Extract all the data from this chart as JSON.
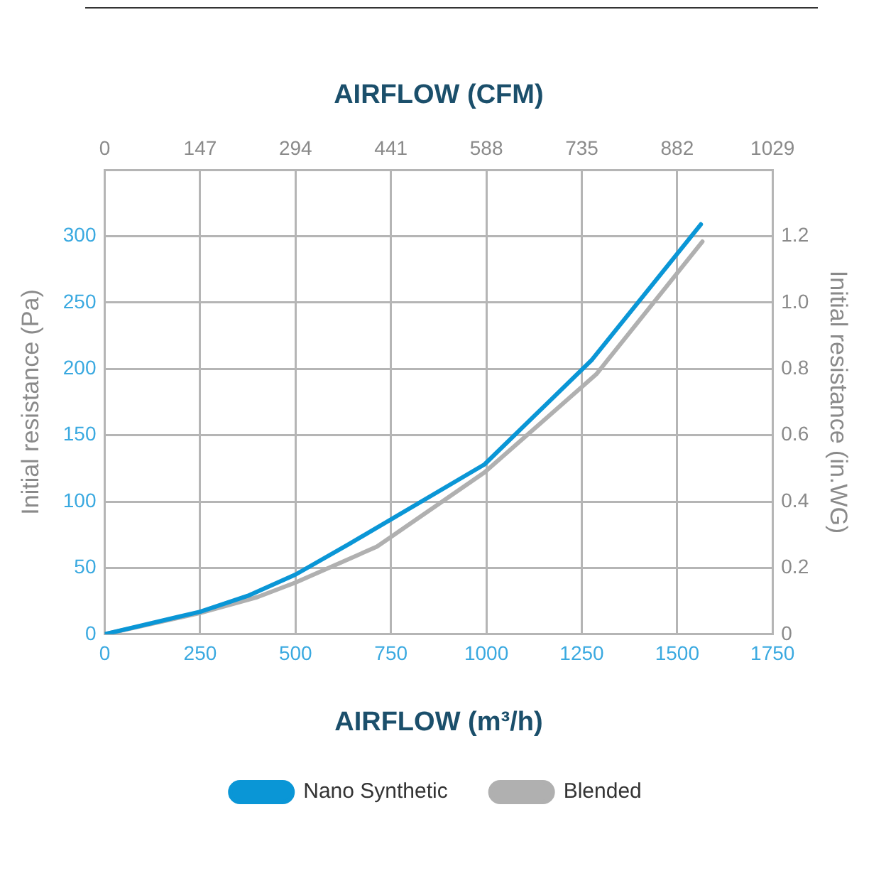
{
  "chart_data": {
    "type": "line",
    "xlabel": "AIRFLOW (m³/h)",
    "x2label": "AIRFLOW (CFM)",
    "ylabel": "Initial resistance (Pa)",
    "y2label": "Initial resistance (in.WG)",
    "xlim": [
      0,
      1750
    ],
    "xticks": [
      0,
      250,
      500,
      750,
      1000,
      1250,
      1500,
      1750
    ],
    "x2lim": [
      0,
      1029
    ],
    "x2ticks": [
      0,
      147,
      294,
      441,
      588,
      735,
      882,
      1029
    ],
    "ylim": [
      0,
      350
    ],
    "yticks": [
      0,
      50,
      100,
      150,
      200,
      250,
      300
    ],
    "y2lim": [
      0,
      1.4
    ],
    "y2ticks": [
      0,
      0.2,
      0.4,
      0.6,
      0.8,
      {
        "value": 1,
        "label": "1.0"
      },
      1.2
    ],
    "grid": true,
    "legend": "bottom",
    "marker": "none",
    "line_style": "solid",
    "series": [
      {
        "name": "Nano Synthetic",
        "color": "#0a96d6",
        "x": [
          0,
          250,
          375,
          500,
          640,
          995,
          1277,
          1562
        ],
        "values": [
          0,
          17,
          29,
          45,
          68,
          128,
          207,
          309
        ]
      },
      {
        "name": "Blended",
        "color": "#b0b0b0",
        "x": [
          0,
          250,
          400,
          500,
          713,
          995,
          1288,
          1566
        ],
        "values": [
          0,
          16,
          28,
          39,
          66,
          122,
          196,
          296
        ]
      }
    ]
  }
}
